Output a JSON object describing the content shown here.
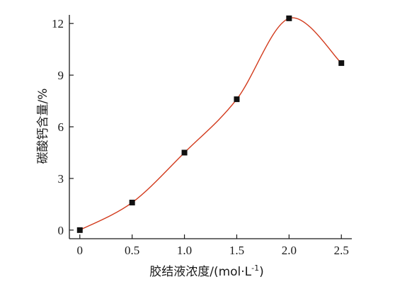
{
  "chart_data": {
    "type": "line",
    "title": "",
    "xlabel_main": "胶结液浓度/(mol·L",
    "xlabel_sup": "-1",
    "xlabel_tail": ")",
    "ylabel": "碳酸钙含量/%",
    "x": [
      0,
      0.5,
      1.0,
      1.5,
      2.0,
      2.5
    ],
    "x_tick_labels": [
      "0",
      "0.5",
      "1.0",
      "1.5",
      "2.0",
      "2.5"
    ],
    "y_ticks": [
      0,
      3,
      6,
      9,
      12
    ],
    "y_tick_labels": [
      "0",
      "3",
      "6",
      "9",
      "12"
    ],
    "xlim": [
      -0.1,
      2.6
    ],
    "ylim": [
      -0.5,
      12.5
    ],
    "series": [
      {
        "values": [
          0,
          1.6,
          4.5,
          7.6,
          12.3,
          9.7
        ],
        "color": "#d23a1c",
        "marker": "square",
        "marker_color": "#111111"
      }
    ],
    "grid": false,
    "legend": "none"
  }
}
